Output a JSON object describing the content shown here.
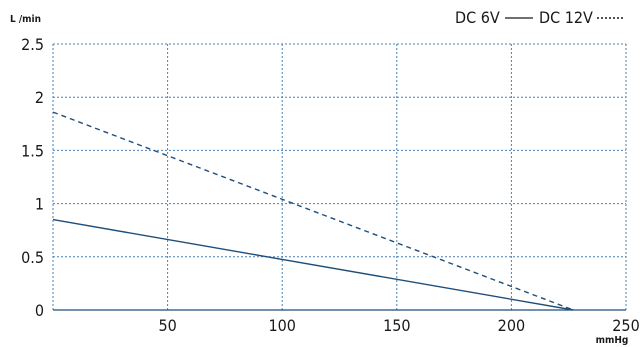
{
  "chart_data": {
    "type": "line",
    "ylabel": "L /min",
    "xlabel": "mmHg",
    "xlim": [
      0,
      250
    ],
    "ylim": [
      0,
      2.5
    ],
    "x_ticks": [
      "50",
      "100",
      "150",
      "200",
      "250"
    ],
    "y_ticks": [
      "0",
      "0.5",
      "1",
      "1.5",
      "2",
      "2.5"
    ],
    "grid": true,
    "legend_position": "top-right",
    "series": [
      {
        "name": "DC 6V",
        "style": "solid",
        "color": "#1f4e79",
        "points": [
          [
            0,
            0.85
          ],
          [
            227,
            0.0
          ]
        ]
      },
      {
        "name": "DC 12V",
        "style": "dashed",
        "color": "#1f4e79",
        "points": [
          [
            0,
            1.86
          ],
          [
            227,
            0.0
          ]
        ]
      }
    ]
  }
}
